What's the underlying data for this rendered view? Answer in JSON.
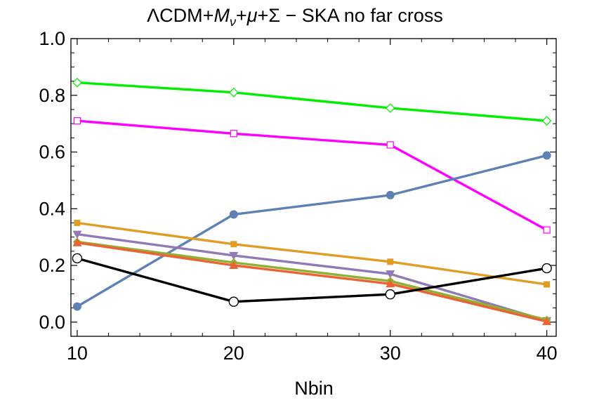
{
  "chart_data": {
    "type": "line",
    "title_parts": {
      "prefix": "ΛCDM+",
      "m": "M",
      "nu": "ν",
      "mid": "+",
      "mu": "μ",
      "suffix": "+Σ − SKA no far cross"
    },
    "xlabel": "Nbin",
    "ylabel": "",
    "x": [
      10,
      20,
      30,
      40
    ],
    "xlim": [
      9.6,
      40.6
    ],
    "ylim": [
      -0.05,
      1.0
    ],
    "x_ticks": [
      "10",
      "20",
      "30",
      "40"
    ],
    "y_ticks": [
      "0.0",
      "0.2",
      "0.4",
      "0.6",
      "0.8",
      "1.0"
    ],
    "y_tick_values": [
      0,
      0.2,
      0.4,
      0.6,
      0.8,
      1.0
    ],
    "grid": false,
    "series": [
      {
        "color": "#00ee00",
        "marker": "diamond-open",
        "values": [
          0.845,
          0.81,
          0.755,
          0.71
        ]
      },
      {
        "color": "#ff00ff",
        "marker": "square-open",
        "values": [
          0.71,
          0.665,
          0.625,
          0.325
        ]
      },
      {
        "color": "#5e81b5",
        "marker": "circle",
        "values": [
          0.055,
          0.38,
          0.448,
          0.588
        ]
      },
      {
        "color": "#e19c24",
        "marker": "square",
        "values": [
          0.35,
          0.275,
          0.213,
          0.133
        ]
      },
      {
        "color": "#8f7ab5",
        "marker": "triangle-down",
        "values": [
          0.31,
          0.235,
          0.17,
          0.005
        ]
      },
      {
        "color": "#8fb032",
        "marker": "diamond",
        "values": [
          0.283,
          0.21,
          0.145,
          0.008
        ]
      },
      {
        "color": "#eb6235",
        "marker": "triangle-up",
        "values": [
          0.28,
          0.2,
          0.135,
          0.002
        ]
      },
      {
        "color": "#000000",
        "marker": "circle-open",
        "values": [
          0.225,
          0.072,
          0.098,
          0.19
        ]
      }
    ]
  }
}
